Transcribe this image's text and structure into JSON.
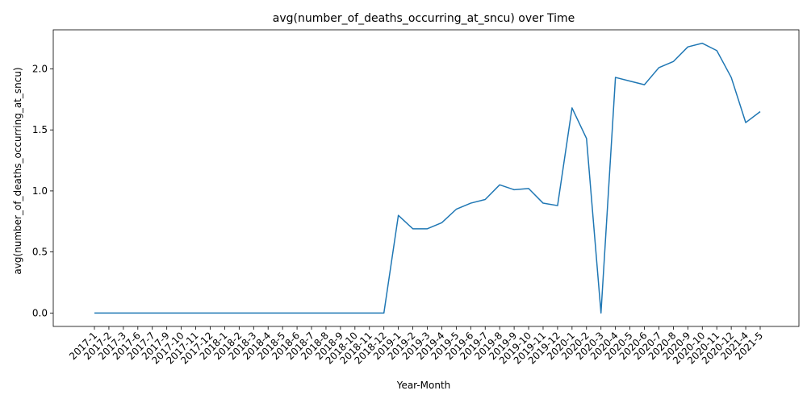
{
  "chart_data": {
    "type": "line",
    "title": "avg(number_of_deaths_occurring_at_sncu) over Time",
    "xlabel": "Year-Month",
    "ylabel": "avg(number_of_deaths_occurring_at_sncu)",
    "ylim": [
      -0.11,
      2.32
    ],
    "yticks": [
      "0.0",
      "0.5",
      "1.0",
      "1.5",
      "2.0"
    ],
    "ytick_values": [
      0,
      0.5,
      1.0,
      1.5,
      2.0
    ],
    "grid": false,
    "line_color": "#1f77b4",
    "series": [
      {
        "x": [
          "2017-1",
          "2017-2",
          "2017-3",
          "2017-6",
          "2017-7",
          "2017-9",
          "2017-10",
          "2017-11",
          "2017-12",
          "2018-1",
          "2018-2",
          "2018-3",
          "2018-4",
          "2018-5",
          "2018-6",
          "2018-7",
          "2018-8",
          "2018-9",
          "2018-10",
          "2018-11",
          "2018-12",
          "2019-1",
          "2019-2",
          "2019-3",
          "2019-4",
          "2019-5",
          "2019-6",
          "2019-7",
          "2019-8",
          "2019-9",
          "2019-10",
          "2019-11",
          "2019-12",
          "2020-1",
          "2020-2",
          "2020-3",
          "2020-4",
          "2020-5",
          "2020-6",
          "2020-7",
          "2020-8",
          "2020-9",
          "2020-10",
          "2020-11",
          "2020-12",
          "2021-4",
          "2021-5"
        ],
        "values": [
          0,
          0,
          0,
          0,
          0,
          0,
          0,
          0,
          0,
          0,
          0,
          0,
          0,
          0,
          0,
          0,
          0,
          0,
          0,
          0,
          0,
          0.8,
          0.69,
          0.69,
          0.74,
          0.85,
          0.9,
          0.93,
          1.05,
          1.01,
          1.02,
          0.9,
          0.88,
          1.68,
          1.43,
          0,
          1.93,
          1.9,
          1.87,
          2.01,
          2.06,
          2.18,
          2.21,
          2.15,
          1.93,
          1.56,
          1.65
        ]
      }
    ]
  }
}
